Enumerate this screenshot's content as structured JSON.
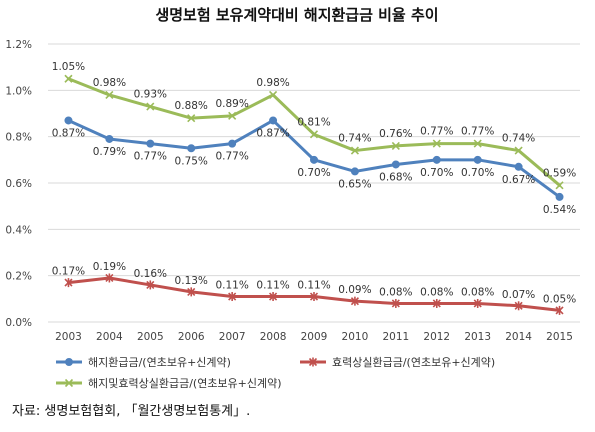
{
  "chart_data": {
    "type": "line",
    "title": "생명보험 보유계약대비 해지환급금 비율 추이",
    "xlabel": "",
    "ylabel": "",
    "x": [
      "2003",
      "2004",
      "2005",
      "2006",
      "2007",
      "2008",
      "2009",
      "2010",
      "2011",
      "2012",
      "2013",
      "2014",
      "2015"
    ],
    "ylim": [
      0,
      1.2
    ],
    "yticks": [
      "0.0%",
      "0.2%",
      "0.4%",
      "0.6%",
      "0.8%",
      "1.0%",
      "1.2%"
    ],
    "grid": true,
    "legend_position": "bottom",
    "series": [
      {
        "name": "해지환급금/(연초보유+신계약)",
        "color": "#4F81BD",
        "marker": "circle",
        "values": [
          0.87,
          0.79,
          0.77,
          0.75,
          0.77,
          0.87,
          0.7,
          0.65,
          0.68,
          0.7,
          0.7,
          0.67,
          0.54
        ],
        "labels": [
          "0.87%",
          "0.79%",
          "0.77%",
          "0.75%",
          "0.77%",
          "0.87%",
          "0.70%",
          "0.65%",
          "0.68%",
          "0.70%",
          "0.70%",
          "0.67%",
          "0.54%"
        ]
      },
      {
        "name": "효력상실환급금/(연초보유+신계약)",
        "color": "#C0504D",
        "marker": "star",
        "values": [
          0.17,
          0.19,
          0.16,
          0.13,
          0.11,
          0.11,
          0.11,
          0.09,
          0.08,
          0.08,
          0.08,
          0.07,
          0.05
        ],
        "labels": [
          "0.17%",
          "0.19%",
          "0.16%",
          "0.13%",
          "0.11%",
          "0.11%",
          "0.11%",
          "0.09%",
          "0.08%",
          "0.08%",
          "0.08%",
          "0.07%",
          "0.05%"
        ]
      },
      {
        "name": "해지및효력상실환급금/(연초보유+신계약)",
        "color": "#9BBB59",
        "marker": "x",
        "values": [
          1.05,
          0.98,
          0.93,
          0.88,
          0.89,
          0.98,
          0.81,
          0.74,
          0.76,
          0.77,
          0.77,
          0.74,
          0.59
        ],
        "labels": [
          "1.05%",
          "0.98%",
          "0.93%",
          "0.88%",
          "0.89%",
          "0.98%",
          "0.81%",
          "0.74%",
          "0.76%",
          "0.77%",
          "0.77%",
          "0.74%",
          "0.59%"
        ]
      }
    ]
  },
  "source_note": "자료: 생명보험협회, 「월간생명보험통계」."
}
